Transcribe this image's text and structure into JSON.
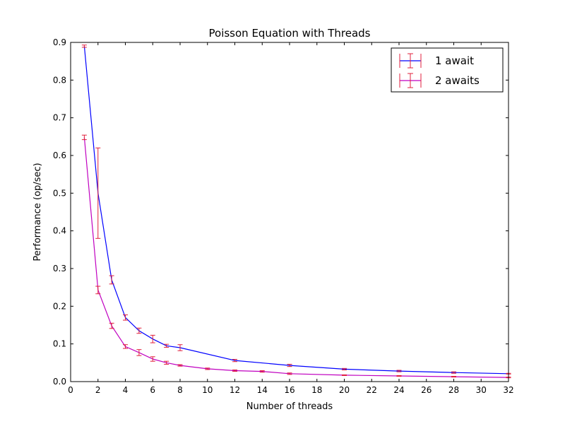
{
  "chart_data": {
    "type": "line",
    "title": "Poisson Equation with Threads",
    "xlabel": "Number of threads",
    "ylabel": "Performance (op/sec)",
    "xlim": [
      0,
      32
    ],
    "ylim": [
      0,
      0.9
    ],
    "xticks": [
      "0",
      "2",
      "4",
      "6",
      "8",
      "10",
      "12",
      "14",
      "16",
      "18",
      "20",
      "22",
      "24",
      "26",
      "28",
      "30",
      "32"
    ],
    "yticks": [
      "0.0",
      "0.1",
      "0.2",
      "0.3",
      "0.4",
      "0.5",
      "0.6",
      "0.7",
      "0.8",
      "0.9"
    ],
    "grid": false,
    "legend_position": "top-right",
    "errorbar_color": "#e0203c",
    "series": [
      {
        "name": "1 await",
        "color": "#0000ff",
        "x": [
          1,
          2,
          3,
          4,
          5,
          6,
          7,
          8,
          12,
          16,
          20,
          24,
          28,
          32
        ],
        "y": [
          0.89,
          0.5,
          0.27,
          0.17,
          0.135,
          0.113,
          0.095,
          0.09,
          0.056,
          0.043,
          0.033,
          0.028,
          0.024,
          0.021
        ],
        "err": [
          0.003,
          0.12,
          0.011,
          0.007,
          0.007,
          0.01,
          0.004,
          0.008,
          0.003,
          0.003,
          0.002,
          0.002,
          0.002,
          0.001
        ]
      },
      {
        "name": "2 awaits",
        "color": "#c000c0",
        "x": [
          1,
          2,
          3,
          4,
          5,
          6,
          7,
          8,
          10,
          12,
          14,
          16,
          20,
          24,
          28,
          32
        ],
        "y": [
          0.648,
          0.243,
          0.148,
          0.093,
          0.077,
          0.06,
          0.05,
          0.043,
          0.034,
          0.029,
          0.027,
          0.021,
          0.017,
          0.015,
          0.013,
          0.011
        ],
        "err": [
          0.006,
          0.01,
          0.007,
          0.005,
          0.008,
          0.006,
          0.004,
          0.002,
          0.002,
          0.002,
          0.002,
          0.002,
          0.001,
          0.001,
          0.001,
          0.001
        ]
      }
    ]
  }
}
